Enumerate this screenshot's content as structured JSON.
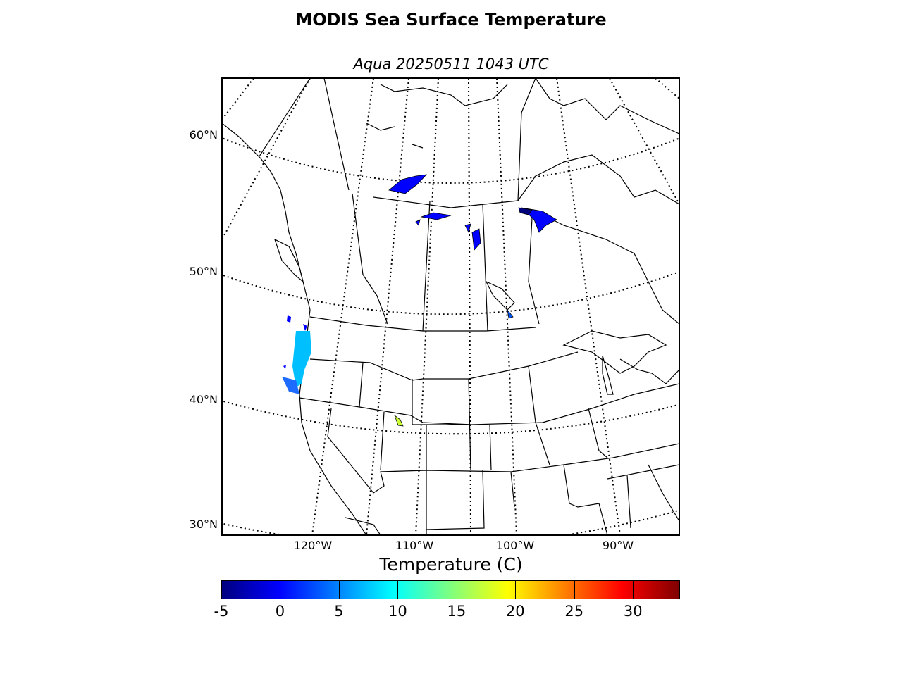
{
  "figure": {
    "title": "MODIS Sea Surface Temperature",
    "subtitle": "Aqua 20250511 1043 UTC"
  },
  "map": {
    "latitude_labels": [
      "60°N",
      "50°N",
      "40°N",
      "30°N"
    ],
    "longitude_labels": [
      "120°W",
      "110°W",
      "100°W",
      "90°W"
    ],
    "graticule_style": "dotted",
    "coastlines": true,
    "political_boundaries": true
  },
  "colorbar": {
    "label": "Temperature (C)",
    "tick_labels": [
      "-5",
      "0",
      "5",
      "10",
      "15",
      "20",
      "25",
      "30"
    ],
    "range": [
      -5,
      34
    ],
    "colormap": "jet",
    "colors": [
      "#00007f",
      "#0000ff",
      "#007fff",
      "#00ffff",
      "#7fff7f",
      "#ffff00",
      "#ff7f00",
      "#ff0000",
      "#7f0000"
    ]
  },
  "colors": {
    "cold_water": "#0000ff",
    "coastal_water": "#00bfff",
    "warm_water": "#ccff33",
    "outline": "#000000"
  }
}
